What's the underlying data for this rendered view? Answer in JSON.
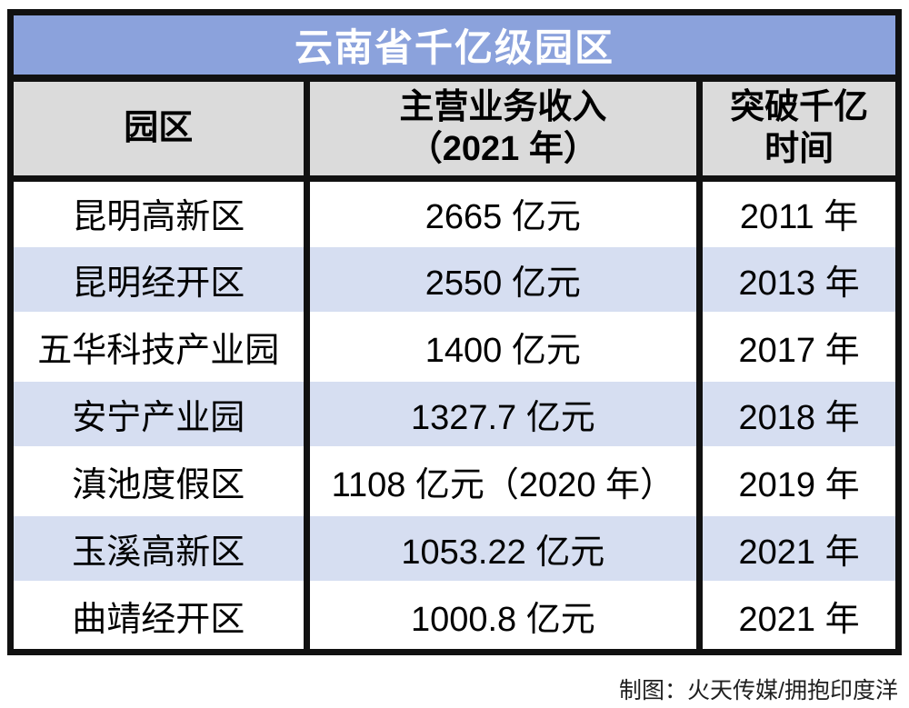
{
  "title": "云南省千亿级园区",
  "columns": [
    "园区",
    "主营业务收入\n（2021 年）",
    "突破千亿\n时间"
  ],
  "rows": [
    {
      "park": "昆明高新区",
      "revenue": "2665 亿元",
      "year": "2011 年"
    },
    {
      "park": "昆明经开区",
      "revenue": "2550 亿元",
      "year": "2013 年"
    },
    {
      "park": "五华科技产业园",
      "revenue": "1400 亿元",
      "year": "2017 年"
    },
    {
      "park": "安宁产业园",
      "revenue": "1327.7 亿元",
      "year": "2018 年"
    },
    {
      "park": "滇池度假区",
      "revenue": "1108 亿元（2020 年）",
      "year": "2019 年"
    },
    {
      "park": "玉溪高新区",
      "revenue": "1053.22 亿元",
      "year": "2021 年"
    },
    {
      "park": "曲靖经开区",
      "revenue": "1000.8 亿元",
      "year": "2021 年"
    }
  ],
  "footer": {
    "credit": "制图：火天传媒/拥抱印度洋"
  },
  "colors": {
    "title_bg": "#8BA2DC",
    "header_bg": "#DBDBDB",
    "row_alt_bg": "#D6DEF1",
    "border_color": "#111111",
    "title_text": "#FFFFFF"
  },
  "chart_data": {
    "type": "table",
    "title": "云南省千亿级园区",
    "columns": [
      "园区",
      "主营业务收入（2021 年）",
      "突破千亿时间"
    ],
    "rows": [
      [
        "昆明高新区",
        "2665 亿元",
        "2011 年"
      ],
      [
        "昆明经开区",
        "2550 亿元",
        "2013 年"
      ],
      [
        "五华科技产业园",
        "1400 亿元",
        "2017 年"
      ],
      [
        "安宁产业园",
        "1327.7 亿元",
        "2018 年"
      ],
      [
        "滇池度假区",
        "1108 亿元（2020 年）",
        "2019 年"
      ],
      [
        "玉溪高新区",
        "1053.22 亿元",
        "2021 年"
      ],
      [
        "曲靖经开区",
        "1000.8 亿元",
        "2021 年"
      ]
    ],
    "revenue_values_yi_yuan": [
      2665,
      2550,
      1400,
      1327.7,
      1108,
      1053.22,
      1000.8
    ],
    "breakthrough_years": [
      2011,
      2013,
      2017,
      2018,
      2019,
      2021,
      2021
    ],
    "layout": {
      "striped_rows": true,
      "header_bg": "#DBDBDB",
      "stripe_bg": "#D6DEF1"
    }
  }
}
